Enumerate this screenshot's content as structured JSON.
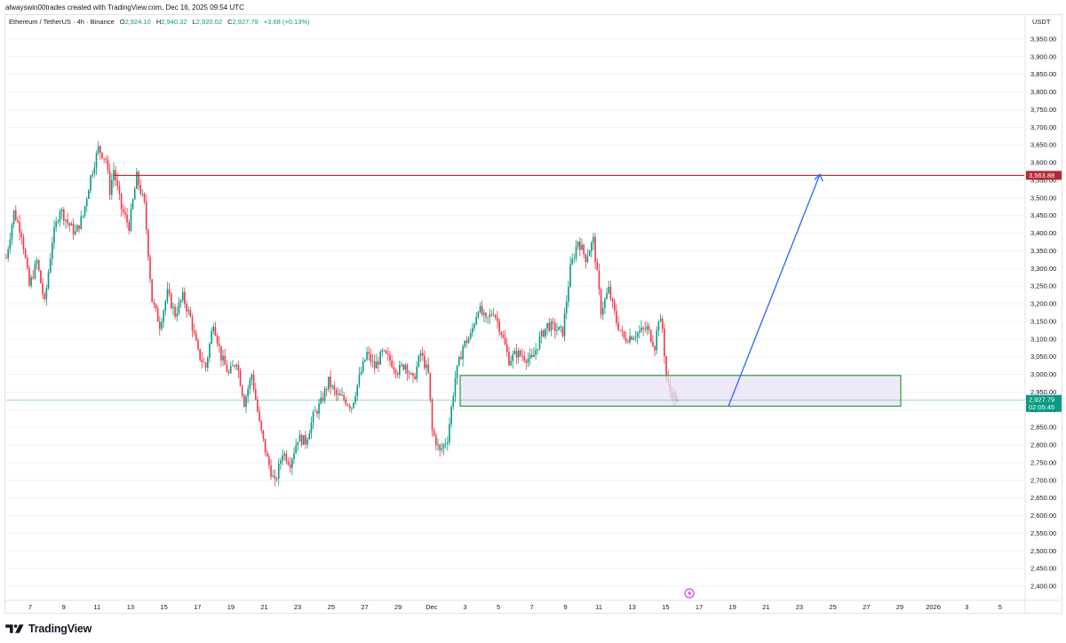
{
  "header": {
    "attribution": "alwayswin00trades created with TradingView.com, Dec 16, 2025 09:54 UTC"
  },
  "legend": {
    "symbol": "Ethereum / TetherUS · 4h · Binance",
    "open_label": "O",
    "open": "2,924.10",
    "high_label": "H",
    "high": "2,940.32",
    "low_label": "L",
    "low": "2,920.02",
    "close_label": "C",
    "close": "2,927.79",
    "change": "+3.68 (+0.13%)"
  },
  "currency": "USDT",
  "footer": {
    "brand": "TradingView"
  },
  "colors": {
    "up": "#089981",
    "down": "#f23645",
    "resistance": "#b22833",
    "box_border": "#2e9e3a",
    "box_fill": "#e9e3f7",
    "arrow": "#2962ff",
    "price_tag": "#089981",
    "grid": "#f0f3fa"
  },
  "chart_data": {
    "type": "candlestick",
    "symbol": "ETHUSDT",
    "timeframe": "4h",
    "exchange": "Binance",
    "ylim": [
      2375,
      3975
    ],
    "x_ticks": [
      "7",
      "9",
      "11",
      "13",
      "15",
      "17",
      "19",
      "21",
      "23",
      "25",
      "27",
      "29",
      "Dec",
      "3",
      "5",
      "7",
      "9",
      "11",
      "13",
      "15",
      "17",
      "19",
      "21",
      "23",
      "25",
      "27",
      "29",
      "2026",
      "3",
      "5"
    ],
    "y_ticks": [
      "3,950.00",
      "3,900.00",
      "3,850.00",
      "3,800.00",
      "3,750.00",
      "3,700.00",
      "3,650.00",
      "3,600.00",
      "3,550.00",
      "3,500.00",
      "3,450.00",
      "3,400.00",
      "3,350.00",
      "3,300.00",
      "3,250.00",
      "3,200.00",
      "3,150.00",
      "3,100.00",
      "3,050.00",
      "3,000.00",
      "2,950.00",
      "2,900.00",
      "2,850.00",
      "2,800.00",
      "2,750.00",
      "2,700.00",
      "2,650.00",
      "2,600.00",
      "2,550.00",
      "2,500.00",
      "2,450.00",
      "2,400.00"
    ],
    "y_tick_values": [
      3950,
      3900,
      3850,
      3800,
      3750,
      3700,
      3650,
      3600,
      3550,
      3500,
      3450,
      3400,
      3350,
      3300,
      3250,
      3200,
      3150,
      3100,
      3050,
      3000,
      2950,
      2900,
      2850,
      2800,
      2750,
      2700,
      2650,
      2600,
      2550,
      2500,
      2450,
      2400
    ],
    "series_path": [
      [
        0,
        3330
      ],
      [
        4,
        3460
      ],
      [
        8,
        3400
      ],
      [
        12,
        3250
      ],
      [
        16,
        3320
      ],
      [
        20,
        3200
      ],
      [
        24,
        3380
      ],
      [
        28,
        3470
      ],
      [
        32,
        3430
      ],
      [
        36,
        3400
      ],
      [
        40,
        3450
      ],
      [
        44,
        3560
      ],
      [
        48,
        3640
      ],
      [
        52,
        3610
      ],
      [
        54,
        3520
      ],
      [
        56,
        3580
      ],
      [
        60,
        3470
      ],
      [
        64,
        3420
      ],
      [
        68,
        3560
      ],
      [
        72,
        3480
      ],
      [
        76,
        3210
      ],
      [
        80,
        3140
      ],
      [
        84,
        3230
      ],
      [
        88,
        3170
      ],
      [
        92,
        3220
      ],
      [
        96,
        3160
      ],
      [
        100,
        3060
      ],
      [
        104,
        3020
      ],
      [
        108,
        3150
      ],
      [
        112,
        3050
      ],
      [
        116,
        3000
      ],
      [
        120,
        3040
      ],
      [
        124,
        2920
      ],
      [
        128,
        3000
      ],
      [
        132,
        2860
      ],
      [
        136,
        2760
      ],
      [
        140,
        2690
      ],
      [
        144,
        2780
      ],
      [
        148,
        2750
      ],
      [
        152,
        2820
      ],
      [
        156,
        2810
      ],
      [
        160,
        2880
      ],
      [
        164,
        2920
      ],
      [
        168,
        2980
      ],
      [
        172,
        2940
      ],
      [
        176,
        2930
      ],
      [
        180,
        2910
      ],
      [
        184,
        2990
      ],
      [
        188,
        3060
      ],
      [
        192,
        3020
      ],
      [
        196,
        3060
      ],
      [
        200,
        3040
      ],
      [
        204,
        3010
      ],
      [
        208,
        3030
      ],
      [
        212,
        2980
      ],
      [
        216,
        3060
      ],
      [
        220,
        3000
      ],
      [
        222,
        2840
      ],
      [
        226,
        2780
      ],
      [
        230,
        2820
      ],
      [
        234,
        2990
      ],
      [
        238,
        3080
      ],
      [
        242,
        3110
      ],
      [
        246,
        3190
      ],
      [
        250,
        3150
      ],
      [
        254,
        3180
      ],
      [
        258,
        3120
      ],
      [
        262,
        3040
      ],
      [
        266,
        3060
      ],
      [
        270,
        3050
      ],
      [
        274,
        3040
      ],
      [
        278,
        3100
      ],
      [
        282,
        3140
      ],
      [
        286,
        3130
      ],
      [
        290,
        3120
      ],
      [
        294,
        3300
      ],
      [
        298,
        3380
      ],
      [
        302,
        3330
      ],
      [
        306,
        3380
      ],
      [
        310,
        3180
      ],
      [
        314,
        3240
      ],
      [
        318,
        3150
      ],
      [
        322,
        3100
      ],
      [
        326,
        3110
      ],
      [
        330,
        3120
      ],
      [
        334,
        3130
      ],
      [
        338,
        3080
      ],
      [
        340,
        3160
      ],
      [
        342,
        3130
      ],
      [
        344,
        2990
      ],
      [
        346,
        2950
      ],
      [
        350,
        2927.79
      ]
    ],
    "candle_count": 351,
    "last": {
      "open": 2924.1,
      "high": 2940.32,
      "low": 2920.02,
      "close": 2927.79
    },
    "annotations": {
      "resistance_level": 3563.88,
      "resistance_label": "3,563.88",
      "demand_zone": {
        "top": 2997,
        "bottom": 2910
      },
      "projection_arrow": {
        "from_price": 2910,
        "to_price": 3567
      },
      "last_price_label": "2,927.79",
      "countdown_label": "02:05:45"
    }
  }
}
